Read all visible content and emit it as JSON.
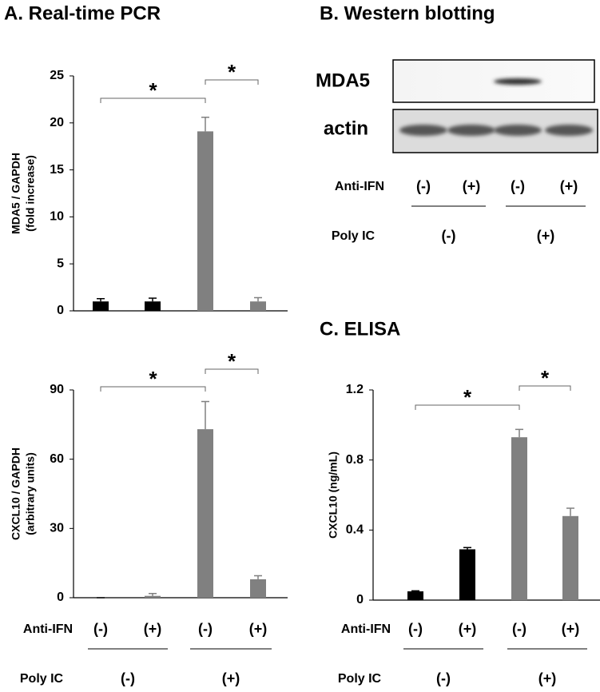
{
  "panels": [
    "A. Real-time PCR",
    "B. Western blotting",
    "C. ELISA"
  ],
  "western_blot": {
    "rows": [
      "MDA5",
      "actin"
    ],
    "categories": [
      "(-)",
      "(+)",
      "(-)",
      "(+)"
    ],
    "axis_label": "Anti-IFN",
    "group_axis": {
      "label": "Poly IC",
      "names": [
        "(-)",
        "(+)"
      ]
    }
  },
  "chart_data": [
    {
      "type": "bar",
      "ylabel": [
        "MDA5 / GAPDH",
        "(fold increase)"
      ],
      "values": [
        1,
        1,
        19.1,
        1
      ],
      "errors": [
        0.3,
        0.35,
        1.5,
        0.4
      ],
      "colors": [
        "#000000",
        "#000000",
        "#808080",
        "#808080"
      ],
      "ylim": [
        0,
        25
      ],
      "yticks": [
        0,
        5,
        10,
        15,
        20,
        25
      ],
      "annotations": [
        {
          "text": "*",
          "from": 0,
          "to": 2
        },
        {
          "text": "*",
          "from": 2,
          "to": 3
        }
      ]
    },
    {
      "type": "bar",
      "ylabel": [
        "CXCL10 / GAPDH",
        "(arbitrary units)"
      ],
      "categories": [
        "(-)",
        "(+)",
        "(-)",
        "(+)"
      ],
      "axis_label": "Anti-IFN",
      "group_axis": {
        "label": "Poly IC",
        "names": [
          "(-)",
          "(+)"
        ]
      },
      "values": [
        0,
        0.8,
        73,
        8
      ],
      "errors": [
        0,
        1,
        12,
        1.5
      ],
      "colors": [
        "#000000",
        "#808080",
        "#808080",
        "#808080"
      ],
      "ylim": [
        0,
        90
      ],
      "yticks": [
        0,
        30,
        60,
        90
      ],
      "annotations": [
        {
          "text": "*",
          "from": 0,
          "to": 2
        },
        {
          "text": "*",
          "from": 2,
          "to": 3
        }
      ]
    },
    {
      "type": "bar",
      "ylabel": [
        "CXCL10  (ng/mL)"
      ],
      "categories": [
        "(-)",
        "(+)",
        "(-)",
        "(+)"
      ],
      "axis_label": "Anti-IFN",
      "group_axis": {
        "label": "Poly IC",
        "names": [
          "(-)",
          "(+)"
        ]
      },
      "values": [
        0.05,
        0.29,
        0.93,
        0.48
      ],
      "errors": [
        0.003,
        0.01,
        0.045,
        0.045
      ],
      "colors": [
        "#000000",
        "#000000",
        "#808080",
        "#808080"
      ],
      "ylim": [
        0,
        1.2
      ],
      "yticks": [
        0,
        0.4,
        0.8,
        1.2
      ],
      "annotations": [
        {
          "text": "*",
          "from": 0,
          "to": 2
        },
        {
          "text": "*",
          "from": 2,
          "to": 3
        }
      ]
    }
  ]
}
